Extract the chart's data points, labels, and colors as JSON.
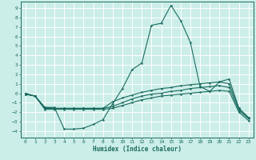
{
  "xlabel": "Humidex (Indice chaleur)",
  "background_color": "#cceee8",
  "grid_color": "#ffffff",
  "line_color": "#1a6b60",
  "xlim": [
    -0.5,
    23.5
  ],
  "ylim": [
    -4.7,
    9.7
  ],
  "yticks": [
    -4,
    -3,
    -2,
    -1,
    0,
    1,
    2,
    3,
    4,
    5,
    6,
    7,
    8,
    9
  ],
  "xticks": [
    0,
    1,
    2,
    3,
    4,
    5,
    6,
    7,
    8,
    9,
    10,
    11,
    12,
    13,
    14,
    15,
    16,
    17,
    18,
    19,
    20,
    21,
    22,
    23
  ],
  "line1_x": [
    0,
    1,
    2,
    3,
    4,
    5,
    6,
    7,
    8,
    9,
    10,
    11,
    12,
    13,
    14,
    15,
    16,
    17,
    18,
    19,
    20,
    21,
    22,
    23
  ],
  "line1_y": [
    0.0,
    -0.3,
    -1.5,
    -1.5,
    -3.8,
    -3.8,
    -3.7,
    -3.3,
    -2.8,
    -1.1,
    0.5,
    2.5,
    3.2,
    7.2,
    7.4,
    9.3,
    7.7,
    5.4,
    0.7,
    0.2,
    1.2,
    1.5,
    -1.6,
    -2.6
  ],
  "line2_x": [
    0,
    1,
    2,
    3,
    4,
    5,
    6,
    7,
    8,
    9,
    10,
    11,
    12,
    13,
    14,
    15,
    16,
    17,
    18,
    19,
    20,
    21,
    22,
    23
  ],
  "line2_y": [
    -0.1,
    -0.3,
    -1.5,
    -1.6,
    -1.6,
    -1.6,
    -1.6,
    -1.6,
    -1.6,
    -0.9,
    -0.5,
    -0.2,
    0.1,
    0.3,
    0.5,
    0.6,
    0.8,
    0.9,
    1.0,
    1.1,
    1.2,
    1.0,
    -1.6,
    -2.6
  ],
  "line3_x": [
    0,
    1,
    2,
    3,
    4,
    5,
    6,
    7,
    8,
    9,
    10,
    11,
    12,
    13,
    14,
    15,
    16,
    17,
    18,
    19,
    20,
    21,
    22,
    23
  ],
  "line3_y": [
    -0.1,
    -0.3,
    -1.6,
    -1.6,
    -1.6,
    -1.6,
    -1.6,
    -1.6,
    -1.6,
    -1.4,
    -1.0,
    -0.6,
    -0.3,
    -0.1,
    0.0,
    0.2,
    0.3,
    0.5,
    0.6,
    0.7,
    0.8,
    0.6,
    -1.8,
    -2.7
  ],
  "line4_x": [
    0,
    1,
    2,
    3,
    4,
    5,
    6,
    7,
    8,
    9,
    10,
    11,
    12,
    13,
    14,
    15,
    16,
    17,
    18,
    19,
    20,
    21,
    22,
    23
  ],
  "line4_y": [
    -0.1,
    -0.3,
    -1.7,
    -1.7,
    -1.7,
    -1.7,
    -1.7,
    -1.7,
    -1.7,
    -1.6,
    -1.3,
    -1.0,
    -0.7,
    -0.5,
    -0.3,
    -0.2,
    -0.1,
    0.0,
    0.1,
    0.2,
    0.3,
    0.2,
    -2.0,
    -2.9
  ]
}
